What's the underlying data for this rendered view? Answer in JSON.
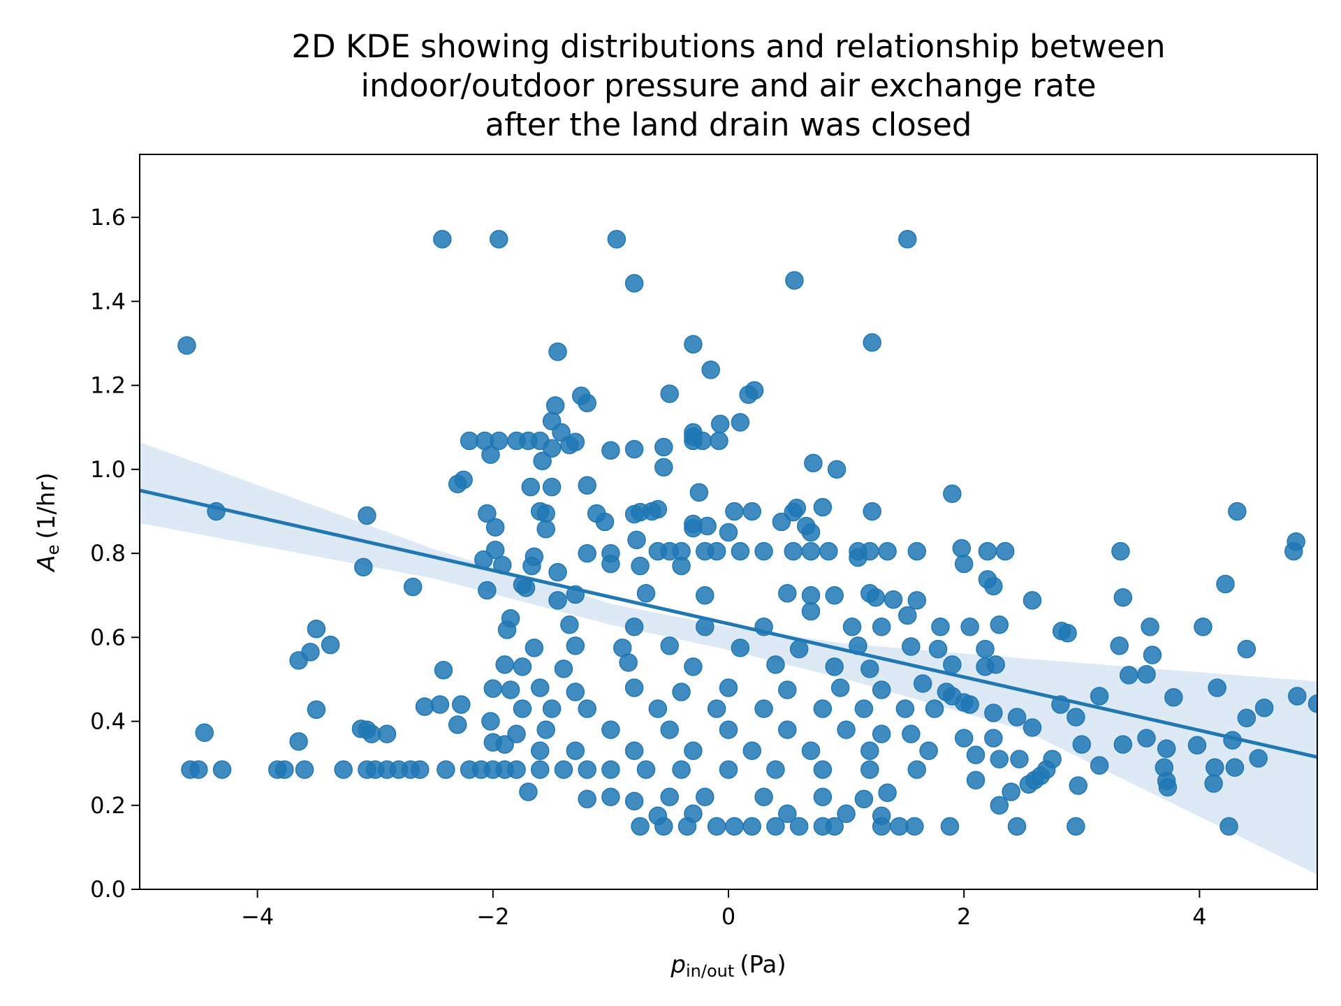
{
  "chart_data": {
    "type": "scatter",
    "title": [
      "2D KDE showing distributions and relationship between",
      "indoor/outdoor pressure and air exchange rate",
      "after the land drain was closed"
    ],
    "xlabel": {
      "symbol": "p",
      "subscript": "in/out",
      "unit": "(Pa)"
    },
    "ylabel": {
      "symbol": "A",
      "subscript": "e",
      "unit": "(1/hr)"
    },
    "xlim": [
      -5,
      5
    ],
    "ylim": [
      0,
      1.75
    ],
    "xticks": [
      -4,
      -2,
      0,
      2,
      4
    ],
    "xtick_labels": [
      "−4",
      "−2",
      "0",
      "2",
      "4"
    ],
    "yticks": [
      0,
      0.2,
      0.4,
      0.6,
      0.8,
      1.0,
      1.2,
      1.4,
      1.6
    ],
    "ytick_labels": [
      "0.0",
      "0.2",
      "0.4",
      "0.6",
      "0.8",
      "1.0",
      "1.2",
      "1.4",
      "1.6"
    ],
    "colors": {
      "points": "#1f77b4",
      "line": "#1f77b4",
      "band": "#c6dbef"
    },
    "regression": {
      "x": [
        -5,
        5
      ],
      "y": [
        0.95,
        0.315
      ],
      "ci_upper": [
        [
          -5,
          1.065
        ],
        [
          -2.5,
          0.81
        ],
        [
          -1,
          0.68
        ],
        [
          0,
          0.625
        ],
        [
          1,
          0.585
        ],
        [
          2.5,
          0.55
        ],
        [
          5,
          0.495
        ]
      ],
      "ci_lower": [
        [
          -5,
          0.872
        ],
        [
          -2.5,
          0.74
        ],
        [
          -1,
          0.63
        ],
        [
          0,
          0.57
        ],
        [
          1,
          0.5
        ],
        [
          2.5,
          0.38
        ],
        [
          5,
          0.035
        ]
      ]
    },
    "points": [
      [
        -4.6,
        1.295
      ],
      [
        -2.43,
        1.548
      ],
      [
        -1.95,
        1.548
      ],
      [
        -0.95,
        1.548
      ],
      [
        1.52,
        1.548
      ],
      [
        -0.8,
        1.443
      ],
      [
        0.56,
        1.45
      ],
      [
        1.22,
        1.302
      ],
      [
        -0.3,
        1.298
      ],
      [
        -1.45,
        1.28
      ],
      [
        -0.15,
        1.237
      ],
      [
        0.22,
        1.188
      ],
      [
        0.17,
        1.178
      ],
      [
        -1.25,
        1.175
      ],
      [
        -1.2,
        1.158
      ],
      [
        -1.47,
        1.152
      ],
      [
        -0.5,
        1.18
      ],
      [
        -0.3,
        1.088
      ],
      [
        -0.3,
        1.078
      ],
      [
        0.1,
        1.112
      ],
      [
        -0.07,
        1.108
      ],
      [
        -1.5,
        1.115
      ],
      [
        -1.42,
        1.088
      ],
      [
        -1.3,
        1.065
      ],
      [
        -1.35,
        1.058
      ],
      [
        -0.55,
        1.053
      ],
      [
        -0.8,
        1.048
      ],
      [
        -1.0,
        1.045
      ],
      [
        -0.3,
        1.068
      ],
      [
        -0.22,
        1.068
      ],
      [
        -0.08,
        1.068
      ],
      [
        -2.07,
        1.068
      ],
      [
        -1.95,
        1.068
      ],
      [
        -1.8,
        1.068
      ],
      [
        -1.7,
        1.068
      ],
      [
        -1.6,
        1.068
      ],
      [
        -2.2,
        1.068
      ],
      [
        -2.02,
        1.035
      ],
      [
        -1.58,
        1.02
      ],
      [
        -1.5,
        1.05
      ],
      [
        0.72,
        1.015
      ],
      [
        0.92,
        1.0
      ],
      [
        -0.55,
        1.005
      ],
      [
        -2.25,
        0.975
      ],
      [
        -2.3,
        0.965
      ],
      [
        -1.2,
        0.962
      ],
      [
        -1.68,
        0.958
      ],
      [
        -1.5,
        0.958
      ],
      [
        -0.25,
        0.945
      ],
      [
        1.9,
        0.942
      ],
      [
        -4.35,
        0.9
      ],
      [
        -3.07,
        0.89
      ],
      [
        -2.05,
        0.895
      ],
      [
        -1.6,
        0.9
      ],
      [
        -1.55,
        0.895
      ],
      [
        -1.12,
        0.895
      ],
      [
        -1.05,
        0.875
      ],
      [
        -0.8,
        0.893
      ],
      [
        -0.75,
        0.898
      ],
      [
        -0.65,
        0.9
      ],
      [
        -0.6,
        0.905
      ],
      [
        0.05,
        0.9
      ],
      [
        0.2,
        0.9
      ],
      [
        0.45,
        0.875
      ],
      [
        0.55,
        0.898
      ],
      [
        0.58,
        0.908
      ],
      [
        0.8,
        0.91
      ],
      [
        1.22,
        0.9
      ],
      [
        4.32,
        0.9
      ],
      [
        -1.55,
        0.858
      ],
      [
        -1.98,
        0.862
      ],
      [
        -0.3,
        0.87
      ],
      [
        -0.3,
        0.86
      ],
      [
        -0.18,
        0.865
      ],
      [
        0.66,
        0.865
      ],
      [
        0.7,
        0.85
      ],
      [
        0.0,
        0.85
      ],
      [
        -0.78,
        0.832
      ],
      [
        -1.98,
        0.808
      ],
      [
        -1.65,
        0.792
      ],
      [
        -1.2,
        0.8
      ],
      [
        -1.0,
        0.8
      ],
      [
        -0.6,
        0.805
      ],
      [
        -0.5,
        0.805
      ],
      [
        -0.4,
        0.805
      ],
      [
        -0.2,
        0.805
      ],
      [
        -0.1,
        0.805
      ],
      [
        0.1,
        0.805
      ],
      [
        0.3,
        0.805
      ],
      [
        0.55,
        0.805
      ],
      [
        0.7,
        0.805
      ],
      [
        0.85,
        0.805
      ],
      [
        1.1,
        0.805
      ],
      [
        1.2,
        0.805
      ],
      [
        1.35,
        0.805
      ],
      [
        1.6,
        0.805
      ],
      [
        2.2,
        0.805
      ],
      [
        2.35,
        0.805
      ],
      [
        3.33,
        0.805
      ],
      [
        4.8,
        0.805
      ],
      [
        4.82,
        0.828
      ],
      [
        1.98,
        0.812
      ],
      [
        -2.08,
        0.785
      ],
      [
        -1.92,
        0.772
      ],
      [
        -1.67,
        0.77
      ],
      [
        -1.45,
        0.755
      ],
      [
        -0.75,
        0.77
      ],
      [
        -0.4,
        0.77
      ],
      [
        -3.1,
        0.767
      ],
      [
        -1.0,
        0.775
      ],
      [
        2.0,
        0.775
      ],
      [
        1.1,
        0.79
      ],
      [
        -2.68,
        0.72
      ],
      [
        -2.05,
        0.712
      ],
      [
        -1.75,
        0.725
      ],
      [
        -1.72,
        0.718
      ],
      [
        -1.3,
        0.702
      ],
      [
        -0.7,
        0.705
      ],
      [
        -0.2,
        0.7
      ],
      [
        0.5,
        0.705
      ],
      [
        0.7,
        0.7
      ],
      [
        1.2,
        0.705
      ],
      [
        1.25,
        0.695
      ],
      [
        1.4,
        0.69
      ],
      [
        1.6,
        0.688
      ],
      [
        2.2,
        0.738
      ],
      [
        2.25,
        0.722
      ],
      [
        2.58,
        0.688
      ],
      [
        3.35,
        0.695
      ],
      [
        4.22,
        0.727
      ],
      [
        -1.45,
        0.688
      ],
      [
        0.9,
        0.7
      ],
      [
        -1.85,
        0.645
      ],
      [
        -1.35,
        0.63
      ],
      [
        -0.8,
        0.625
      ],
      [
        -0.2,
        0.625
      ],
      [
        0.3,
        0.625
      ],
      [
        0.7,
        0.662
      ],
      [
        1.05,
        0.625
      ],
      [
        1.3,
        0.625
      ],
      [
        1.52,
        0.652
      ],
      [
        1.8,
        0.625
      ],
      [
        2.05,
        0.625
      ],
      [
        2.3,
        0.63
      ],
      [
        2.83,
        0.615
      ],
      [
        2.88,
        0.61
      ],
      [
        3.58,
        0.625
      ],
      [
        4.03,
        0.625
      ],
      [
        -3.5,
        0.62
      ],
      [
        -1.88,
        0.618
      ],
      [
        -3.38,
        0.582
      ],
      [
        -3.55,
        0.565
      ],
      [
        -3.65,
        0.545
      ],
      [
        -1.65,
        0.575
      ],
      [
        -1.3,
        0.58
      ],
      [
        -0.9,
        0.575
      ],
      [
        -0.5,
        0.58
      ],
      [
        0.1,
        0.575
      ],
      [
        0.6,
        0.572
      ],
      [
        1.1,
        0.58
      ],
      [
        1.55,
        0.578
      ],
      [
        1.78,
        0.572
      ],
      [
        2.18,
        0.572
      ],
      [
        3.32,
        0.58
      ],
      [
        3.6,
        0.558
      ],
      [
        4.4,
        0.572
      ],
      [
        -1.9,
        0.535
      ],
      [
        -1.75,
        0.53
      ],
      [
        -1.4,
        0.525
      ],
      [
        -0.85,
        0.54
      ],
      [
        -0.3,
        0.53
      ],
      [
        0.4,
        0.535
      ],
      [
        0.9,
        0.53
      ],
      [
        1.2,
        0.525
      ],
      [
        1.9,
        0.535
      ],
      [
        2.18,
        0.53
      ],
      [
        2.27,
        0.535
      ],
      [
        -2.42,
        0.522
      ],
      [
        3.55,
        0.512
      ],
      [
        3.4,
        0.51
      ],
      [
        -2.0,
        0.478
      ],
      [
        -1.85,
        0.475
      ],
      [
        -1.6,
        0.48
      ],
      [
        -1.3,
        0.47
      ],
      [
        -0.8,
        0.48
      ],
      [
        -0.4,
        0.47
      ],
      [
        0.0,
        0.48
      ],
      [
        0.5,
        0.475
      ],
      [
        0.95,
        0.48
      ],
      [
        1.3,
        0.475
      ],
      [
        1.65,
        0.49
      ],
      [
        1.85,
        0.47
      ],
      [
        1.9,
        0.46
      ],
      [
        3.15,
        0.46
      ],
      [
        3.78,
        0.457
      ],
      [
        4.15,
        0.48
      ],
      [
        4.83,
        0.46
      ],
      [
        -2.58,
        0.435
      ],
      [
        -2.45,
        0.44
      ],
      [
        -2.27,
        0.44
      ],
      [
        -3.5,
        0.428
      ],
      [
        -1.75,
        0.43
      ],
      [
        -1.5,
        0.43
      ],
      [
        -1.2,
        0.43
      ],
      [
        -0.6,
        0.43
      ],
      [
        -0.1,
        0.43
      ],
      [
        0.3,
        0.43
      ],
      [
        0.8,
        0.43
      ],
      [
        1.15,
        0.43
      ],
      [
        1.5,
        0.43
      ],
      [
        1.75,
        0.43
      ],
      [
        2.0,
        0.445
      ],
      [
        2.05,
        0.44
      ],
      [
        2.25,
        0.42
      ],
      [
        2.45,
        0.41
      ],
      [
        2.82,
        0.44
      ],
      [
        2.95,
        0.41
      ],
      [
        4.4,
        0.408
      ],
      [
        4.55,
        0.432
      ],
      [
        5.0,
        0.442
      ],
      [
        -2.3,
        0.392
      ],
      [
        -2.02,
        0.4
      ],
      [
        -3.07,
        0.38
      ],
      [
        -3.12,
        0.382
      ],
      [
        -2.9,
        0.37
      ],
      [
        -3.03,
        0.37
      ],
      [
        -4.45,
        0.373
      ],
      [
        -1.8,
        0.37
      ],
      [
        -1.55,
        0.38
      ],
      [
        -1.0,
        0.38
      ],
      [
        -0.5,
        0.38
      ],
      [
        0.0,
        0.38
      ],
      [
        0.5,
        0.38
      ],
      [
        1.0,
        0.38
      ],
      [
        1.3,
        0.37
      ],
      [
        1.55,
        0.37
      ],
      [
        2.0,
        0.36
      ],
      [
        2.25,
        0.36
      ],
      [
        2.58,
        0.385
      ],
      [
        3.0,
        0.345
      ],
      [
        3.35,
        0.345
      ],
      [
        3.55,
        0.36
      ],
      [
        3.72,
        0.335
      ],
      [
        3.98,
        0.343
      ],
      [
        4.28,
        0.355
      ],
      [
        -3.65,
        0.352
      ],
      [
        -2.0,
        0.35
      ],
      [
        -1.9,
        0.345
      ],
      [
        -1.6,
        0.33
      ],
      [
        -1.3,
        0.33
      ],
      [
        -0.8,
        0.33
      ],
      [
        -0.3,
        0.33
      ],
      [
        0.2,
        0.33
      ],
      [
        0.7,
        0.33
      ],
      [
        1.2,
        0.33
      ],
      [
        1.7,
        0.33
      ],
      [
        2.1,
        0.32
      ],
      [
        2.3,
        0.31
      ],
      [
        2.47,
        0.31
      ],
      [
        3.15,
        0.295
      ],
      [
        3.7,
        0.29
      ],
      [
        4.13,
        0.29
      ],
      [
        4.3,
        0.29
      ],
      [
        4.5,
        0.312
      ],
      [
        -4.57,
        0.285
      ],
      [
        -4.5,
        0.285
      ],
      [
        -4.3,
        0.285
      ],
      [
        -3.83,
        0.285
      ],
      [
        -3.77,
        0.285
      ],
      [
        -3.6,
        0.285
      ],
      [
        -3.27,
        0.285
      ],
      [
        -3.07,
        0.285
      ],
      [
        -3.0,
        0.285
      ],
      [
        -2.9,
        0.285
      ],
      [
        -2.8,
        0.285
      ],
      [
        -2.7,
        0.285
      ],
      [
        -2.62,
        0.285
      ],
      [
        -2.4,
        0.285
      ],
      [
        -2.2,
        0.285
      ],
      [
        -2.1,
        0.285
      ],
      [
        -2.0,
        0.285
      ],
      [
        -1.9,
        0.285
      ],
      [
        -1.8,
        0.285
      ],
      [
        -1.6,
        0.285
      ],
      [
        -1.4,
        0.285
      ],
      [
        -1.2,
        0.285
      ],
      [
        -1.0,
        0.285
      ],
      [
        -0.7,
        0.285
      ],
      [
        -0.4,
        0.285
      ],
      [
        0.0,
        0.285
      ],
      [
        0.4,
        0.285
      ],
      [
        0.8,
        0.285
      ],
      [
        1.2,
        0.285
      ],
      [
        1.6,
        0.285
      ],
      [
        2.7,
        0.285
      ],
      [
        2.75,
        0.31
      ],
      [
        2.65,
        0.27
      ],
      [
        2.6,
        0.26
      ],
      [
        2.55,
        0.25
      ],
      [
        -1.7,
        0.232
      ],
      [
        -1.2,
        0.215
      ],
      [
        -1.0,
        0.22
      ],
      [
        -0.8,
        0.21
      ],
      [
        -0.5,
        0.22
      ],
      [
        -0.2,
        0.22
      ],
      [
        0.3,
        0.22
      ],
      [
        0.8,
        0.22
      ],
      [
        1.15,
        0.215
      ],
      [
        1.35,
        0.23
      ],
      [
        2.1,
        0.26
      ],
      [
        2.3,
        0.2
      ],
      [
        2.4,
        0.232
      ],
      [
        2.97,
        0.247
      ],
      [
        3.73,
        0.243
      ],
      [
        3.72,
        0.258
      ],
      [
        4.12,
        0.252
      ],
      [
        -0.6,
        0.175
      ],
      [
        -0.3,
        0.18
      ],
      [
        0.5,
        0.18
      ],
      [
        1.0,
        0.18
      ],
      [
        1.3,
        0.175
      ],
      [
        -0.75,
        0.15
      ],
      [
        -0.55,
        0.15
      ],
      [
        -0.35,
        0.15
      ],
      [
        -0.1,
        0.15
      ],
      [
        0.05,
        0.15
      ],
      [
        0.2,
        0.15
      ],
      [
        0.4,
        0.15
      ],
      [
        0.6,
        0.15
      ],
      [
        0.8,
        0.15
      ],
      [
        0.9,
        0.15
      ],
      [
        1.3,
        0.15
      ],
      [
        1.45,
        0.15
      ],
      [
        1.58,
        0.15
      ],
      [
        1.88,
        0.15
      ],
      [
        2.45,
        0.15
      ],
      [
        2.95,
        0.15
      ],
      [
        4.25,
        0.15
      ]
    ],
    "grid": false,
    "legend": "none"
  }
}
